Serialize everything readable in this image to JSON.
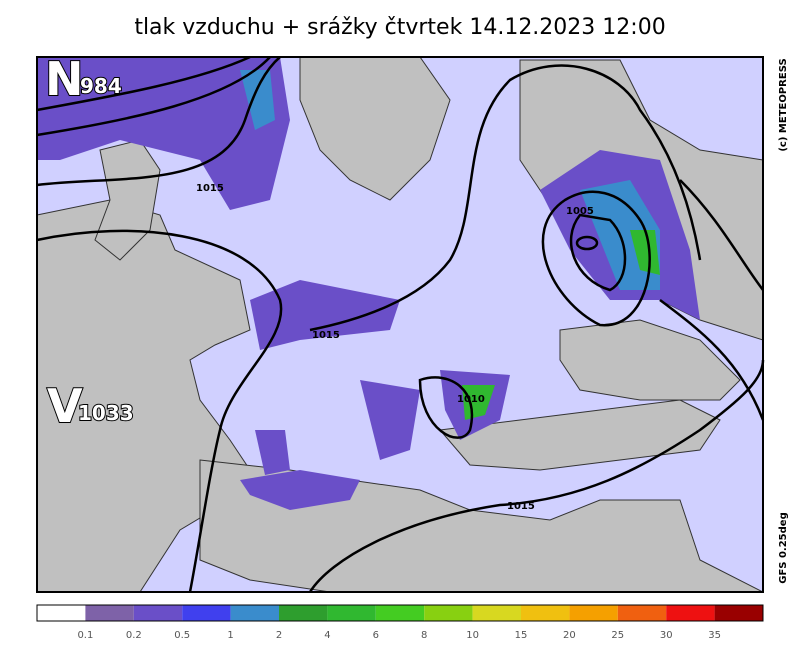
{
  "header": {
    "title": "tlak vzduchu + srážky čtvrtek 14.12.2023 12:00"
  },
  "map": {
    "low_label": "N",
    "low_value": "984",
    "high_label": "V",
    "high_value": "1033",
    "isobar_labels": [
      "1015",
      "1005",
      "1015",
      "1010",
      "1015"
    ],
    "copyright": "(c) METEOPRESS",
    "model": "GFS 0.25deg"
  },
  "colorbar": {
    "colors": [
      "#ffffff",
      "#7e62a8",
      "#6a4fc8",
      "#4040ee",
      "#3a8ccc",
      "#2e9e2e",
      "#30b830",
      "#44cc22",
      "#88d011",
      "#d8d820",
      "#f0c010",
      "#f5a000",
      "#f06010",
      "#ee1111",
      "#990000"
    ],
    "labels": [
      "0.1",
      "0.2",
      "0.5",
      "1",
      "2",
      "4",
      "6",
      "8",
      "10",
      "15",
      "20",
      "25",
      "30",
      "35"
    ]
  }
}
